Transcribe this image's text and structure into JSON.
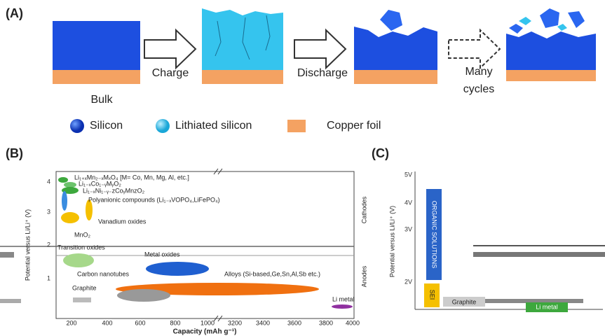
{
  "panel_a": {
    "label": "(A)",
    "stage": "Bulk",
    "arrow_1": "Charge",
    "arrow_2": "Discharge",
    "arrow_3": [
      "Many",
      "cycles"
    ],
    "legend": [
      "Silicon",
      "Lithiated silicon",
      "Copper foil"
    ]
  },
  "panel_b": {
    "label": "(B)",
    "y_axis": "Potential versus Li/Li⁺ (V)",
    "x_axis": "Capacity (mAh g⁻¹)",
    "y_ticks": [
      "1",
      "2",
      "3",
      "4"
    ],
    "x_ticks": [
      "200",
      "400",
      "600",
      "800",
      "1000",
      "3200",
      "3400",
      "3600",
      "3800",
      "4000"
    ],
    "regions": [
      "Cathodes",
      "Anodes"
    ],
    "materials": [
      "Li₁₊ₓMn₂₋ₓMₓO₄ [M= Co, Mn, Mg, Al, etc.]",
      "Li₁₋ₓCo₁₋ᵧMᵧO₂",
      "Li₁₋ₓNi₁₋ᵧ₋zCoᵧMnzO₂",
      "Polyanionic compounds (Li₁₋ₓVOPO₄,LiFePO₄)",
      "Vanadium oxides",
      "MnO₂",
      "Transition oxides",
      "Metal oxides",
      "Carbon nanotubes",
      "Alloys (Si-based,Ge,Sn,Al,Sb etc.)",
      "Graphite",
      "Li metal"
    ]
  },
  "panel_c": {
    "label": "(C)",
    "y_axis": "Potential versus Li/Li⁺ (V)",
    "y_ticks": [
      "5V",
      "4V",
      "3V",
      "2V"
    ],
    "bars": [
      "ORGANIC SOLUTIONS",
      "SEI",
      "Graphite",
      "Li metal"
    ]
  }
}
